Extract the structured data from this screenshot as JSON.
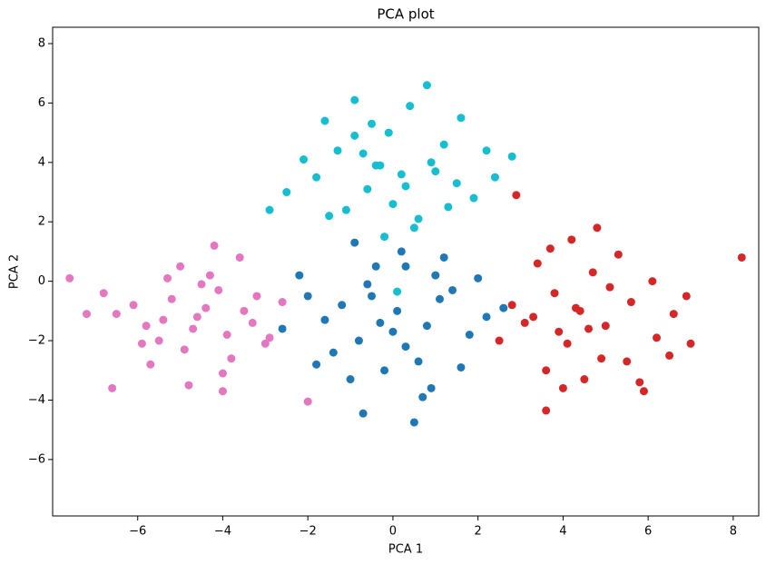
{
  "chart_data": {
    "type": "scatter",
    "title": "PCA plot",
    "x_label": "PCA 1",
    "y_label": "PCA 2",
    "xlim": [
      -8.0,
      8.6
    ],
    "ylim": [
      -7.9,
      8.55
    ],
    "xticks": [
      {
        "value": -6,
        "label": "−6"
      },
      {
        "value": -4,
        "label": "−4"
      },
      {
        "value": -2,
        "label": "−2"
      },
      0,
      2,
      4,
      6,
      8
    ],
    "yticks": [
      {
        "value": -6,
        "label": "−6"
      },
      {
        "value": -4,
        "label": "−4"
      },
      {
        "value": -2,
        "label": "−2"
      },
      0,
      2,
      4,
      6,
      8
    ],
    "grid": false,
    "series": [
      {
        "color": "#e377c2",
        "x": [
          -4.6,
          -5.2,
          -3.9,
          -4.1,
          -5.8,
          -3.5,
          -4.9,
          -6.1,
          -4.3,
          -5.5,
          -3.2,
          -4.7,
          -5.0,
          -3.8,
          -6.5,
          -4.4,
          -2.9,
          -5.3,
          -4.0,
          -6.8,
          -3.6,
          -5.7,
          -4.8,
          -2.6,
          -5.9,
          -4.2,
          -3.3,
          -7.6,
          -2.0,
          -6.6,
          -3.0,
          -5.4,
          -4.5,
          -7.2,
          -4.0
        ],
        "y": [
          -1.2,
          -0.6,
          -1.8,
          -0.3,
          -1.5,
          -1.0,
          -2.3,
          -0.8,
          0.2,
          -2.0,
          -0.5,
          -1.6,
          0.5,
          -2.6,
          -1.1,
          -0.9,
          -1.9,
          0.1,
          -3.1,
          -0.4,
          0.8,
          -2.8,
          -3.5,
          -0.7,
          -2.1,
          1.2,
          -1.4,
          0.1,
          -4.05,
          -3.6,
          -2.1,
          -1.3,
          -0.1,
          -1.1,
          -3.7
        ]
      },
      {
        "color": "#1f77b4",
        "x": [
          0.1,
          -0.5,
          0.8,
          -1.2,
          1.4,
          0.3,
          -0.8,
          1.0,
          -0.2,
          0.6,
          -1.6,
          1.8,
          -0.4,
          0.9,
          -1.0,
          0.2,
          2.2,
          -2.0,
          0.5,
          -0.7,
          1.2,
          -1.4,
          0.0,
          0.3,
          -0.6,
          1.6,
          -2.6,
          2.0,
          -0.9,
          0.7,
          -1.8,
          1.1,
          -0.3,
          2.6,
          -2.2
        ],
        "y": [
          -1.0,
          -0.5,
          -1.5,
          -0.8,
          -0.3,
          -2.2,
          -2.0,
          0.2,
          -3.0,
          -2.7,
          -1.3,
          -1.8,
          0.5,
          -3.6,
          -3.3,
          1.0,
          -1.2,
          -0.5,
          -4.75,
          -4.45,
          0.8,
          -2.4,
          -1.7,
          0.5,
          -0.1,
          -2.9,
          -1.6,
          0.1,
          1.3,
          -3.9,
          -2.8,
          -0.6,
          -1.4,
          -0.9,
          0.2
        ]
      },
      {
        "color": "#d62728",
        "x": [
          4.4,
          3.8,
          5.0,
          4.1,
          5.6,
          3.3,
          4.7,
          6.2,
          3.6,
          4.9,
          5.3,
          2.8,
          4.2,
          6.6,
          3.9,
          5.8,
          4.5,
          2.5,
          6.9,
          3.4,
          5.1,
          4.0,
          7.0,
          3.6,
          2.9,
          8.2,
          4.8,
          5.5,
          3.1,
          6.1,
          4.3,
          3.7,
          5.9,
          4.6,
          6.5
        ],
        "y": [
          -1.0,
          -0.4,
          -1.5,
          -2.1,
          -0.7,
          -1.2,
          0.3,
          -1.9,
          -3.0,
          -2.6,
          0.9,
          -0.8,
          1.4,
          -1.1,
          -1.7,
          -3.4,
          -3.3,
          -2.0,
          -0.5,
          0.6,
          -0.2,
          -3.6,
          -2.1,
          -4.35,
          2.9,
          0.8,
          1.8,
          -2.7,
          -1.4,
          0.0,
          -0.9,
          1.1,
          -3.7,
          -1.6,
          -2.5
        ]
      },
      {
        "color": "#17becf",
        "x": [
          0.2,
          -0.6,
          0.9,
          -1.3,
          1.5,
          0.0,
          -0.9,
          1.2,
          -0.3,
          0.6,
          -1.8,
          1.9,
          -0.5,
          0.4,
          -1.1,
          0.8,
          -0.9,
          2.2,
          -2.1,
          0.3,
          -0.2,
          1.6,
          -2.5,
          2.8,
          -1.5,
          1.0,
          -0.7,
          0.5,
          -2.9,
          2.4,
          -0.1,
          1.3,
          -1.6,
          0.1,
          -0.4
        ],
        "y": [
          3.6,
          3.1,
          4.0,
          4.4,
          3.3,
          2.6,
          4.9,
          4.6,
          3.9,
          2.1,
          3.5,
          2.8,
          5.3,
          5.9,
          2.4,
          6.6,
          6.1,
          4.4,
          4.1,
          3.2,
          1.5,
          5.5,
          3.0,
          4.2,
          2.2,
          3.7,
          4.3,
          1.8,
          2.4,
          3.5,
          5.0,
          2.5,
          5.4,
          -0.35,
          3.9
        ]
      }
    ]
  }
}
